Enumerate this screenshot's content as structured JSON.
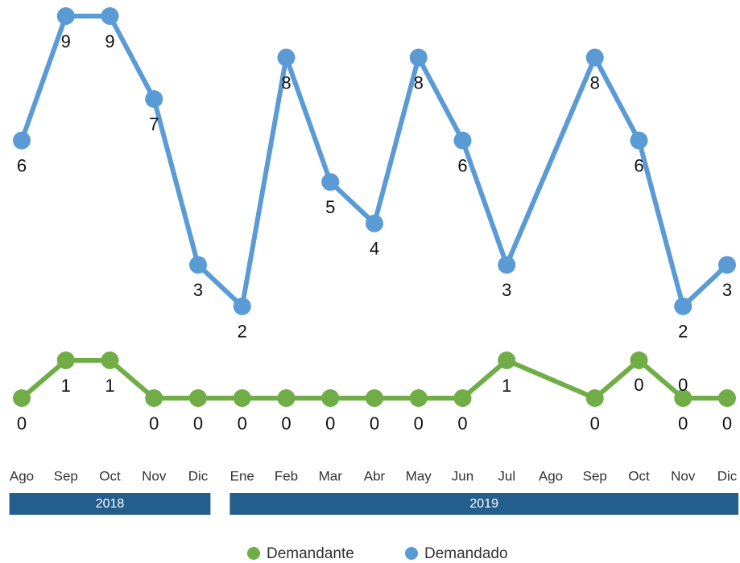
{
  "chart_data": {
    "type": "line",
    "categories": [
      "Ago",
      "Sep",
      "Oct",
      "Nov",
      "Dic",
      "Ene",
      "Feb",
      "Mar",
      "Abr",
      "May",
      "Jun",
      "Jul",
      "Ago",
      "Sep",
      "Oct",
      "Nov",
      "Dic"
    ],
    "groups": [
      {
        "label": "2018",
        "span": [
          0,
          4
        ]
      },
      {
        "label": "2019",
        "span": [
          5,
          16
        ]
      }
    ],
    "series": [
      {
        "name": "Demandante",
        "color": "#70ad47",
        "axis": "y2",
        "values": [
          0,
          1,
          1,
          0,
          0,
          0,
          0,
          0,
          0,
          0,
          0,
          1,
          null,
          0,
          1,
          0,
          0
        ],
        "value_labels": [
          "0",
          "1",
          "1",
          "0",
          "0",
          "0",
          "0",
          "0",
          "0",
          "0",
          "0",
          "1",
          null,
          "0",
          null,
          "0",
          "0"
        ]
      },
      {
        "name": "Demandado",
        "color": "#5b9bd5",
        "values": [
          6,
          9,
          9,
          7,
          3,
          2,
          8,
          5,
          4,
          8,
          6,
          3,
          null,
          8,
          6,
          2,
          3
        ]
      }
    ],
    "annotations": [
      {
        "text": "0"
      },
      {
        "text": "0"
      }
    ],
    "ylim": [
      0,
      9
    ],
    "y2lim": [
      0,
      1
    ],
    "span_gaps": true,
    "legend": "bottom",
    "group_color": "#245e8f"
  }
}
